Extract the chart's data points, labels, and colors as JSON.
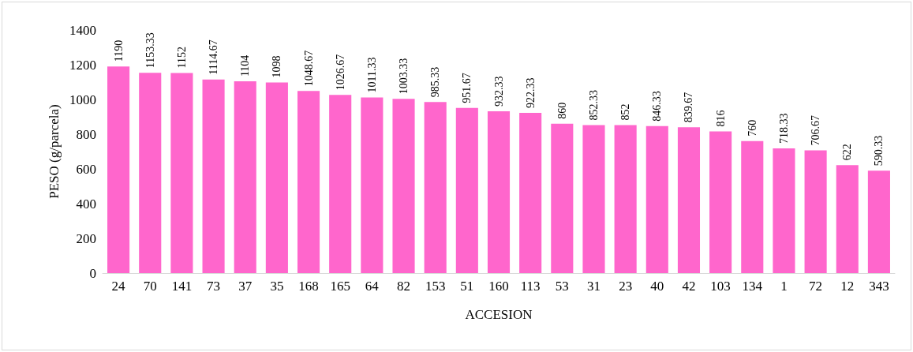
{
  "chart_data": {
    "type": "bar",
    "xlabel": "ACCESION",
    "ylabel": "PESO (g/parcela)",
    "categories": [
      "24",
      "70",
      "141",
      "73",
      "37",
      "35",
      "168",
      "165",
      "64",
      "82",
      "153",
      "51",
      "160",
      "113",
      "53",
      "31",
      "23",
      "40",
      "42",
      "103",
      "134",
      "1",
      "72",
      "12",
      "343"
    ],
    "values": [
      1190,
      1153.33,
      1152,
      1114.67,
      1104,
      1098,
      1048.67,
      1026.67,
      1011.33,
      1003.33,
      985.33,
      951.67,
      932.33,
      922.33,
      860,
      852.33,
      852,
      846.33,
      839.67,
      816,
      760,
      718.33,
      706.67,
      622,
      590.33
    ],
    "color": "#ff66cc",
    "ylim": [
      0,
      1400
    ],
    "yticks": [
      0,
      200,
      400,
      600,
      800,
      1000,
      1200,
      1400
    ],
    "grid": false,
    "data_labels": true
  }
}
